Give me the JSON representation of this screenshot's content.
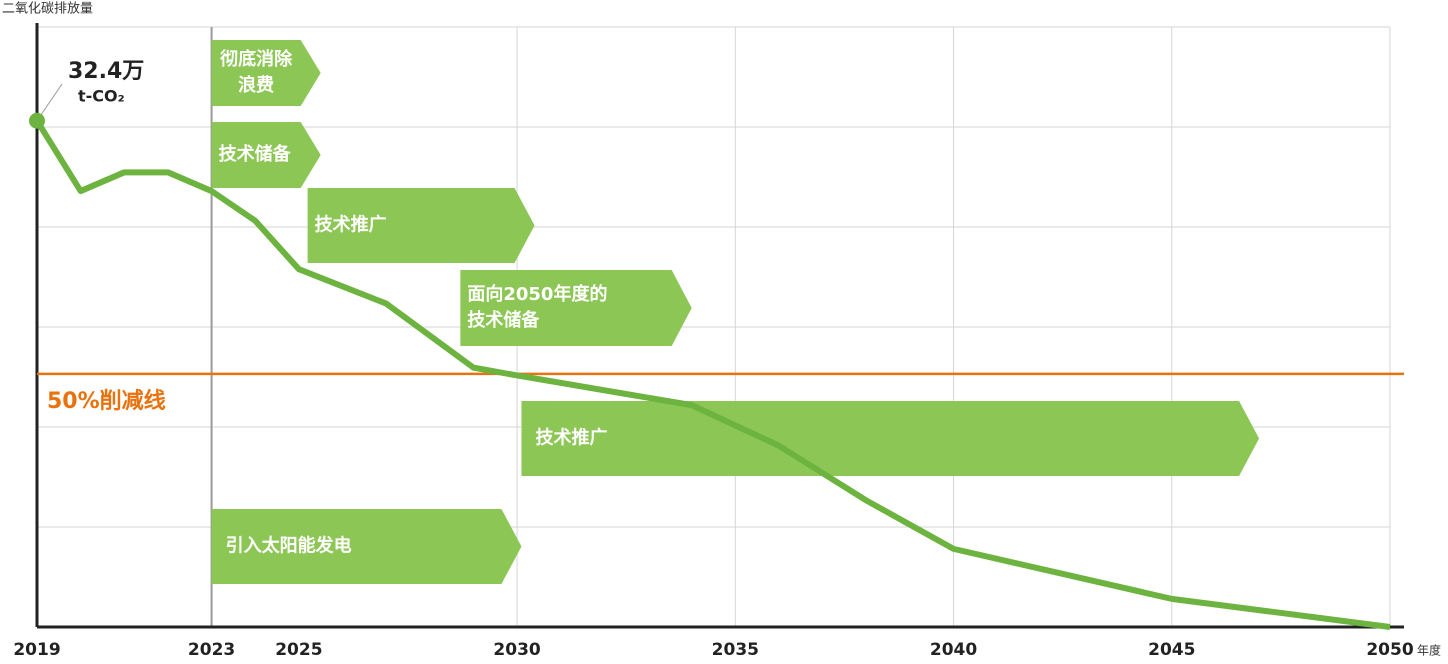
{
  "chart_data": {
    "type": "line",
    "y_axis_label": "二氧化碳排放量",
    "x_axis_label": "年度",
    "x": [
      2019,
      2020,
      2021,
      2022,
      2023,
      2024,
      2025,
      2027,
      2029,
      2030,
      2034,
      2036,
      2038,
      2040,
      2045,
      2050
    ],
    "values": [
      32.4,
      27.9,
      29.1,
      29.1,
      27.9,
      26.0,
      22.9,
      20.7,
      16.6,
      16.1,
      14.2,
      11.6,
      8.1,
      5.0,
      1.8,
      0
    ],
    "value_labels": [
      "32.4万",
      null,
      null,
      null,
      null,
      null,
      null,
      null,
      null,
      null,
      null,
      null,
      null,
      null,
      null,
      null
    ],
    "unit_label": "t-CO₂",
    "color": "#6db33f",
    "xlim": [
      2019,
      2050
    ],
    "xticks": [
      2019,
      2023,
      2025,
      2030,
      2035,
      2040,
      2045,
      2050
    ],
    "xgrid": [
      2023,
      2030,
      2035,
      2040,
      2045,
      2050
    ],
    "ylim": [
      0,
      38.4
    ],
    "yticks": [
      0,
      6.4,
      12.8,
      19.2,
      25.6,
      32,
      38.4
    ],
    "grid": true,
    "reference_line": {
      "value": 16.2,
      "label": "50%削减线",
      "color": "#e8730e"
    },
    "phase_color": "#8cc655",
    "phases": [
      {
        "label": [
          "彻底消除",
          "浪费"
        ],
        "start": 2023,
        "end": 2025.5
      },
      {
        "label": [
          "技术储备"
        ],
        "start": 2023,
        "end": 2025.5
      },
      {
        "label": [
          "技术推广"
        ],
        "start": 2025.2,
        "end": 2030.4
      },
      {
        "label": [
          "面向2050年度的",
          "技术储备"
        ],
        "start": 2028.7,
        "end": 2034
      },
      {
        "label": [
          "技术推广"
        ],
        "start": 2030.1,
        "end": 2047
      },
      {
        "label": [
          "引入太阳能发电"
        ],
        "start": 2023,
        "end": 2030.1
      }
    ]
  }
}
